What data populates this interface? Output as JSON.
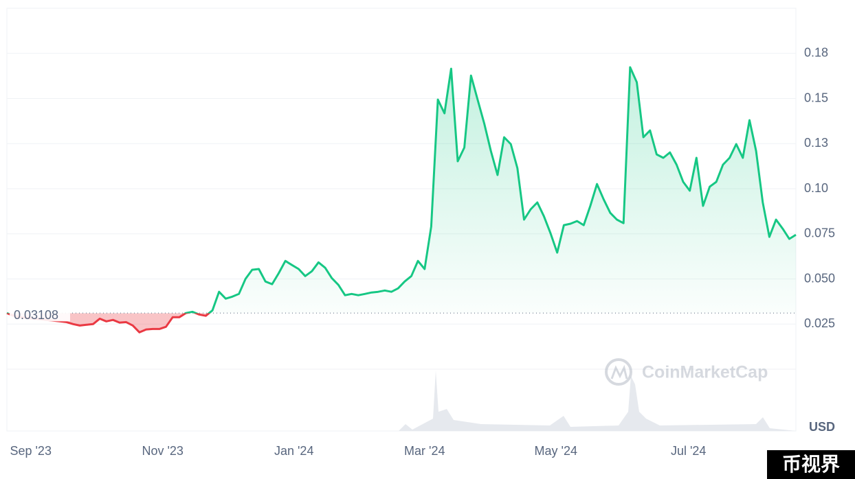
{
  "chart_data": {
    "type": "line",
    "unit": "USD",
    "watermark": "CoinMarketCap",
    "badge": "币视界",
    "baseline": 0.03108,
    "up_color": "#16c784",
    "down_color": "#ea3943",
    "xlim": [
      0,
      119
    ],
    "xticks": [
      {
        "value": 3.6,
        "label": "Sep '23"
      },
      {
        "value": 23.5,
        "label": "Nov '23"
      },
      {
        "value": 43.3,
        "label": "Jan '24"
      },
      {
        "value": 63,
        "label": "Mar '24"
      },
      {
        "value": 82.8,
        "label": "May '24"
      },
      {
        "value": 102.8,
        "label": "Jul '24"
      }
    ],
    "ylim": [
      0,
      0.2
    ],
    "yticks": [
      {
        "value": 0.025,
        "label": "0.025"
      },
      {
        "value": 0.05,
        "label": "0.050"
      },
      0.075,
      {
        "value": 0.1,
        "label": "0.10"
      },
      {
        "value": 0.125,
        "label": "0.13"
      },
      0.15,
      {
        "value": 0.175,
        "label": "0.18"
      }
    ],
    "grid": true,
    "values": [
      0.0311,
      0.0296,
      0.0288,
      0.0284,
      0.028,
      0.0277,
      0.0273,
      0.0269,
      0.0265,
      0.0261,
      0.025,
      0.0242,
      0.0246,
      0.025,
      0.028,
      0.0265,
      0.0273,
      0.0258,
      0.0261,
      0.0242,
      0.0204,
      0.022,
      0.0223,
      0.0223,
      0.0235,
      0.0288,
      0.0288,
      0.0311,
      0.0318,
      0.0303,
      0.0296,
      0.0326,
      0.0429,
      0.0391,
      0.0402,
      0.0417,
      0.0501,
      0.0551,
      0.0555,
      0.0486,
      0.0471,
      0.0532,
      0.06,
      0.0577,
      0.0555,
      0.0516,
      0.0543,
      0.0592,
      0.0562,
      0.0505,
      0.0467,
      0.041,
      0.0417,
      0.041,
      0.0417,
      0.0425,
      0.0429,
      0.0436,
      0.0429,
      0.0448,
      0.0486,
      0.0516,
      0.06,
      0.0555,
      0.079,
      0.1494,
      0.1418,
      0.1665,
      0.1152,
      0.1228,
      0.1627,
      0.1494,
      0.1361,
      0.1209,
      0.1076,
      0.1285,
      0.1247,
      0.1114,
      0.0829,
      0.0886,
      0.0924,
      0.0847,
      0.0752,
      0.0646,
      0.0798,
      0.0806,
      0.0821,
      0.0798,
      0.0905,
      0.1026,
      0.0942,
      0.0866,
      0.0829,
      0.0809,
      0.1673,
      0.159,
      0.1285,
      0.1323,
      0.119,
      0.1171,
      0.1201,
      0.1133,
      0.1038,
      0.0989,
      0.1171,
      0.0905,
      0.1011,
      0.1038,
      0.1133,
      0.1171,
      0.1247,
      0.1171,
      0.138,
      0.1209,
      0.0924,
      0.0733,
      0.0829,
      0.0779,
      0.0722,
      0.0745
    ]
  }
}
